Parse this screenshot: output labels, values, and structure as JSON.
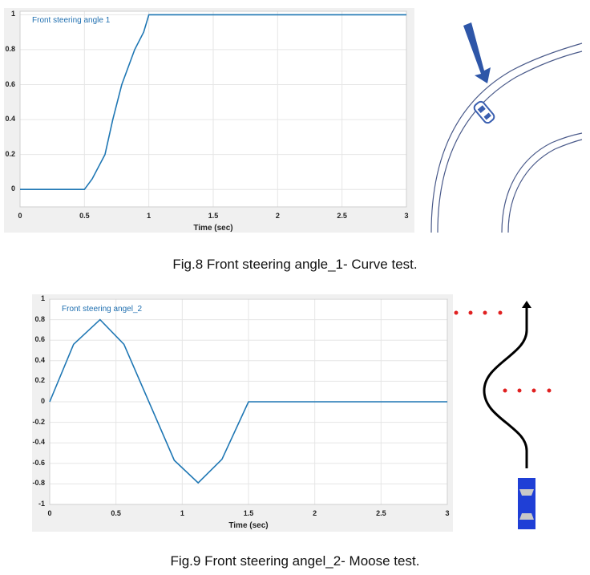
{
  "figures": [
    {
      "caption": "Fig.8 Front steering angle_1- Curve test.",
      "legend": "Front steering angle 1",
      "xlabel": "Time (sec)",
      "xticks": [
        "0",
        "0.5",
        "1",
        "1.5",
        "2",
        "2.5",
        "3"
      ],
      "yticks": [
        "1",
        "0.8",
        "0.6",
        "0.4",
        "0.2",
        "0"
      ]
    },
    {
      "caption": "Fig.9 Front steering angel_2- Moose test.",
      "legend": "Front steering angel_2",
      "xlabel": "Time (sec)",
      "xticks": [
        "0",
        "0.5",
        "1",
        "1.5",
        "2",
        "2.5",
        "3"
      ],
      "yticks": [
        "1",
        "0.8",
        "0.6",
        "0.4",
        "0.2",
        "0",
        "-0.2",
        "-0.4",
        "-0.6",
        "-0.8",
        "-1"
      ]
    }
  ],
  "chart_data": [
    {
      "type": "line",
      "title": "",
      "xlabel": "Time (sec)",
      "ylabel": "",
      "xlim": [
        0,
        3
      ],
      "ylim": [
        -0.1,
        1.02
      ],
      "grid": true,
      "legend_position": "top-left",
      "series": [
        {
          "name": "Front steering angle 1",
          "color": "#1f77b4",
          "x": [
            0,
            0.5,
            0.56,
            0.66,
            0.72,
            0.79,
            0.89,
            0.96,
            1.0,
            3.0
          ],
          "y": [
            0,
            0,
            0.06,
            0.2,
            0.4,
            0.6,
            0.8,
            0.9,
            1.0,
            1.0
          ]
        }
      ]
    },
    {
      "type": "line",
      "title": "",
      "xlabel": "Time (sec)",
      "ylabel": "",
      "xlim": [
        0,
        3
      ],
      "ylim": [
        -1,
        1
      ],
      "grid": true,
      "legend_position": "top-left",
      "series": [
        {
          "name": "Front steering angel_2",
          "color": "#1f77b4",
          "x": [
            0,
            0.18,
            0.38,
            0.56,
            0.94,
            1.12,
            1.3,
            1.5,
            3.0
          ],
          "y": [
            0,
            0.56,
            0.8,
            0.56,
            -0.57,
            -0.79,
            -0.56,
            0,
            0
          ]
        }
      ]
    }
  ],
  "illustrations": {
    "curve_road_color": "#4a5a8a",
    "car_color": "#3a5fb0",
    "arrow_color": "#2e56a8",
    "dots_color": "#e02020",
    "moose_car_color": "#1f3fd6",
    "path_color": "#000000"
  }
}
